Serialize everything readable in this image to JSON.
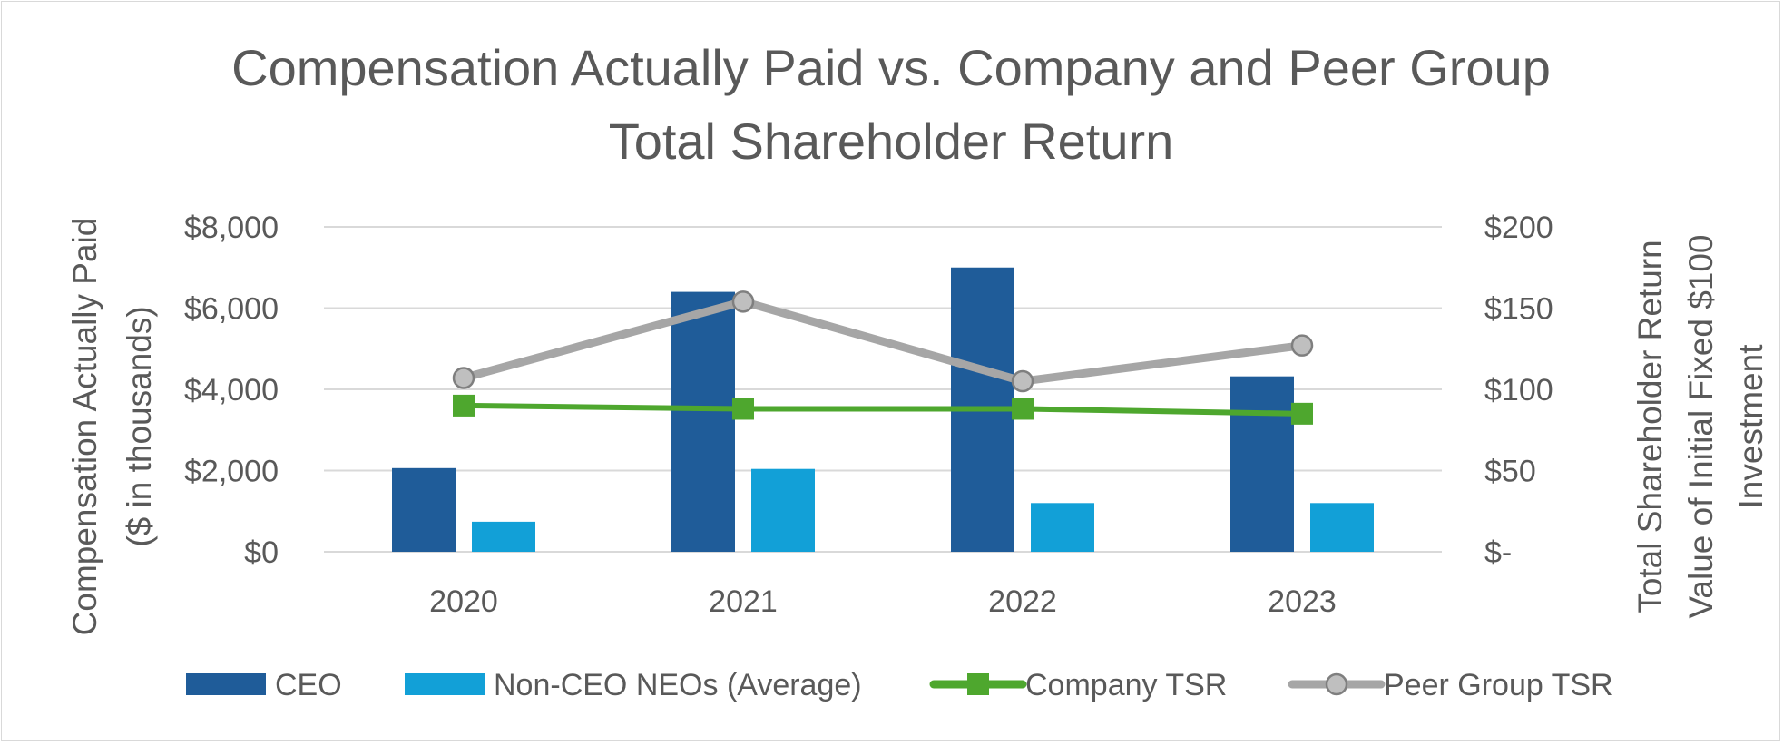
{
  "chart_data": {
    "type": "bar",
    "title_lines": [
      "Compensation Actually Paid vs. Company and Peer Group",
      "Total Shareholder Return"
    ],
    "categories": [
      "2020",
      "2021",
      "2022",
      "2023"
    ],
    "ylabel_left_lines": [
      "Compensation Actually Paid",
      "($ in thousands)"
    ],
    "ylabel_right_lines": [
      "Total Shareholder Return",
      "Value of Initial Fixed $100",
      "Investment"
    ],
    "ylim_left": [
      0,
      8000
    ],
    "ylim_right": [
      0,
      200
    ],
    "left_ticks": [
      "$0",
      "$2,000",
      "$4,000",
      "$6,000",
      "$8,000"
    ],
    "right_ticks": [
      "$-",
      "$50",
      "$100",
      "$150",
      "$200"
    ],
    "grid": true,
    "legend_position": "bottom",
    "series": [
      {
        "name": "CEO",
        "type": "bar",
        "axis": "left",
        "color": "#1F5C99",
        "values": [
          2060,
          6400,
          7000,
          4320
        ]
      },
      {
        "name": "Non-CEO NEOs (Average)",
        "type": "bar",
        "axis": "left",
        "color": "#12A0D7",
        "values": [
          740,
          2040,
          1200,
          1200
        ]
      },
      {
        "name": "Company TSR",
        "type": "line",
        "axis": "right",
        "color": "#4EA72E",
        "marker": "square",
        "values": [
          90,
          88,
          88,
          85
        ]
      },
      {
        "name": "Peer Group TSR",
        "type": "line",
        "axis": "right",
        "color": "#A6A6A6",
        "marker": "circle",
        "values": [
          107,
          154,
          105,
          127
        ]
      }
    ]
  }
}
